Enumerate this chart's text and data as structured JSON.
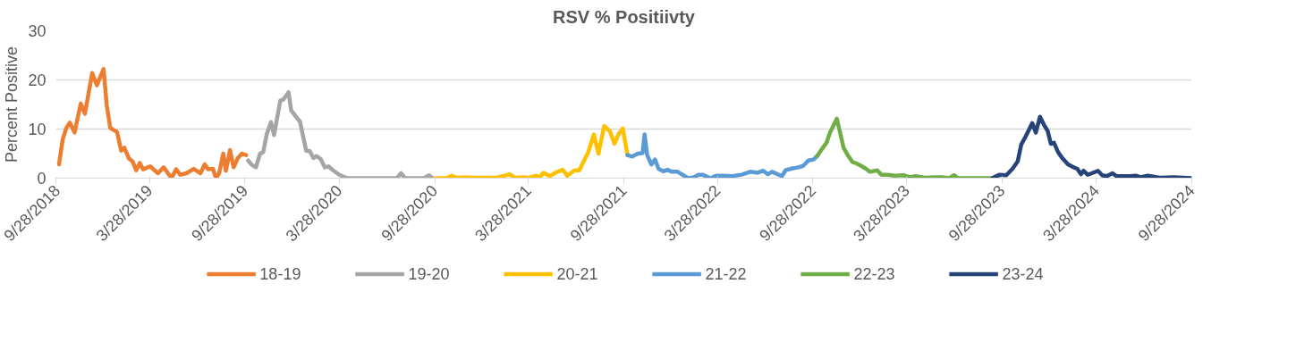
{
  "chart_data": {
    "type": "line",
    "title": "RSV % Positiivty",
    "ylabel": "Percent Positive",
    "xlim": [
      "2018-09-28",
      "2024-09-28"
    ],
    "xticks": [
      {
        "value": "2018-09-28",
        "label": "9/28/2018"
      },
      {
        "value": "2019-03-28",
        "label": "3/28/2019"
      },
      {
        "value": "2019-09-28",
        "label": "9/28/2019"
      },
      {
        "value": "2020-03-28",
        "label": "3/28/2020"
      },
      {
        "value": "2020-09-28",
        "label": "9/28/2020"
      },
      {
        "value": "2021-03-28",
        "label": "3/28/2021"
      },
      {
        "value": "2021-09-28",
        "label": "9/28/2021"
      },
      {
        "value": "2022-03-28",
        "label": "3/28/2022"
      },
      {
        "value": "2022-09-28",
        "label": "9/28/2022"
      },
      {
        "value": "2023-03-28",
        "label": "3/28/2023"
      },
      {
        "value": "2023-09-28",
        "label": "9/28/2023"
      },
      {
        "value": "2024-03-28",
        "label": "3/28/2024"
      },
      {
        "value": "2024-09-28",
        "label": "9/28/2024"
      }
    ],
    "ylim": [
      0,
      30
    ],
    "yticks": [
      0,
      10,
      20,
      30
    ],
    "grid": "y",
    "legend": "bottom",
    "line_style": "solid",
    "marker": "none",
    "series": [
      {
        "name": "18-19",
        "color": "#ed7d31",
        "x": [
          "2018-10-04",
          "2018-10-11",
          "2018-10-18",
          "2018-10-25",
          "2018-11-03",
          "2018-11-15",
          "2018-11-23",
          "2018-12-07",
          "2018-12-16",
          "2018-12-29",
          "2019-01-04",
          "2019-01-11",
          "2019-01-24",
          "2019-02-01",
          "2019-02-07",
          "2019-02-16",
          "2019-02-23",
          "2019-03-02",
          "2019-03-09",
          "2019-03-15",
          "2019-03-29",
          "2019-04-13",
          "2019-04-24",
          "2019-05-09",
          "2019-05-18",
          "2019-05-26",
          "2019-06-07",
          "2019-06-21",
          "2019-07-04",
          "2019-07-12",
          "2019-07-19",
          "2019-07-28",
          "2019-08-03",
          "2019-08-09",
          "2019-08-17",
          "2019-08-22",
          "2019-08-30",
          "2019-09-06",
          "2019-09-14",
          "2019-09-22",
          "2019-09-30"
        ],
        "values": [
          2.8,
          7.8,
          10.2,
          11.3,
          9.3,
          15.2,
          13.1,
          21.4,
          18.9,
          22.2,
          14.9,
          10.2,
          9.4,
          5.6,
          6.2,
          4.0,
          3.4,
          1.6,
          3.1,
          1.8,
          2.4,
          1.0,
          2.2,
          0,
          1.8,
          0.7,
          1.0,
          1.9,
          1.0,
          2.8,
          1.8,
          1.9,
          0,
          1.0,
          5.0,
          1.5,
          5.7,
          2.2,
          4.1,
          5.0,
          4.7
        ]
      },
      {
        "name": "19-20",
        "color": "#a5a5a5",
        "x": [
          "2019-10-04",
          "2019-10-11",
          "2019-10-19",
          "2019-10-27",
          "2019-11-02",
          "2019-11-09",
          "2019-11-17",
          "2019-11-23",
          "2019-12-05",
          "2019-12-11",
          "2019-12-21",
          "2019-12-26",
          "2020-01-03",
          "2020-01-12",
          "2020-01-24",
          "2020-01-31",
          "2020-02-07",
          "2020-02-13",
          "2020-02-21",
          "2020-02-29",
          "2020-03-07",
          "2020-03-16",
          "2020-03-29",
          "2020-04-12",
          "2020-05-25",
          "2020-07-17",
          "2020-07-25",
          "2020-08-02",
          "2020-09-07",
          "2020-09-17",
          "2020-09-24"
        ],
        "values": [
          3.6,
          2.7,
          2.2,
          5.0,
          5.3,
          9.0,
          11.4,
          8.8,
          15.8,
          16.0,
          17.5,
          13.8,
          12.7,
          11.5,
          5.6,
          5.5,
          4.1,
          4.5,
          3.9,
          2.2,
          2.4,
          1.6,
          0.6,
          0,
          0,
          0,
          1.0,
          0,
          0,
          0.6,
          0
        ]
      },
      {
        "name": "20-21",
        "color": "#ffc000",
        "x": [
          "2020-09-28",
          "2020-10-21",
          "2020-10-31",
          "2020-11-10",
          "2020-11-27",
          "2020-12-20",
          "2021-01-25",
          "2021-02-06",
          "2021-02-20",
          "2021-03-01",
          "2021-03-18",
          "2021-03-29",
          "2021-04-12",
          "2021-04-18",
          "2021-04-26",
          "2021-05-08",
          "2021-05-19",
          "2021-06-02",
          "2021-06-11",
          "2021-06-25",
          "2021-07-04",
          "2021-07-12",
          "2021-07-21",
          "2021-08-01",
          "2021-08-10",
          "2021-08-21",
          "2021-09-01",
          "2021-09-10",
          "2021-09-18",
          "2021-09-26",
          "2021-10-05"
        ],
        "values": [
          0,
          0,
          0.5,
          0.1,
          0.2,
          0.1,
          0.1,
          0.4,
          0.8,
          0.1,
          0.2,
          0.1,
          0.5,
          0.1,
          1.1,
          0.4,
          1.1,
          1.7,
          0.5,
          1.6,
          1.6,
          3.3,
          5.2,
          8.9,
          5.0,
          10.6,
          9.6,
          7.0,
          9.0,
          10.1,
          4.7
        ]
      },
      {
        "name": "21-22",
        "color": "#5b9bd5",
        "x": [
          "2021-10-05",
          "2021-10-14",
          "2021-10-25",
          "2021-11-03",
          "2021-11-07",
          "2021-11-12",
          "2021-11-20",
          "2021-11-27",
          "2021-12-04",
          "2021-12-13",
          "2021-12-21",
          "2021-12-30",
          "2022-01-10",
          "2022-01-19",
          "2022-01-30",
          "2022-02-10",
          "2022-02-19",
          "2022-02-27",
          "2022-03-14",
          "2022-03-25",
          "2022-04-08",
          "2022-04-25",
          "2022-05-13",
          "2022-05-30",
          "2022-06-13",
          "2022-06-24",
          "2022-07-03",
          "2022-07-11",
          "2022-07-30",
          "2022-08-06",
          "2022-08-20",
          "2022-08-31",
          "2022-09-09",
          "2022-09-19",
          "2022-09-29",
          "2022-10-06"
        ],
        "values": [
          4.7,
          4.4,
          5.0,
          5.1,
          8.9,
          4.7,
          2.8,
          3.8,
          1.9,
          1.4,
          1.7,
          1.3,
          1.3,
          0.7,
          0,
          0.2,
          0.7,
          0.7,
          0,
          0.5,
          0.5,
          0.4,
          0.7,
          1.3,
          1.1,
          1.5,
          0.8,
          1.3,
          0.4,
          1.6,
          2.0,
          2.2,
          2.5,
          3.6,
          3.8,
          4.5
        ]
      },
      {
        "name": "22-23",
        "color": "#70ad47",
        "x": [
          "2022-10-06",
          "2022-10-15",
          "2022-10-24",
          "2022-10-31",
          "2022-11-13",
          "2022-11-19",
          "2022-11-26",
          "2022-12-04",
          "2022-12-13",
          "2022-12-21",
          "2022-12-30",
          "2023-01-07",
          "2023-01-16",
          "2023-01-30",
          "2023-02-07",
          "2023-02-19",
          "2023-03-05",
          "2023-03-22",
          "2023-04-02",
          "2023-04-14",
          "2023-05-01",
          "2023-05-23",
          "2023-06-04",
          "2023-06-18",
          "2023-06-27",
          "2023-07-05",
          "2023-07-31",
          "2023-09-20"
        ],
        "values": [
          4.5,
          5.9,
          7.2,
          9.3,
          12.1,
          9.4,
          6.2,
          4.7,
          3.3,
          3.0,
          2.5,
          2.0,
          1.3,
          1.6,
          0.7,
          0.7,
          0.5,
          0.6,
          0.2,
          0.4,
          0.1,
          0.2,
          0.2,
          0,
          0.6,
          0,
          0,
          0
        ]
      },
      {
        "name": "23-24",
        "color": "#264478",
        "x": [
          "2023-09-09",
          "2023-09-22",
          "2023-10-06",
          "2023-10-18",
          "2023-10-28",
          "2023-11-04",
          "2023-11-12",
          "2023-11-25",
          "2023-12-02",
          "2023-12-10",
          "2023-12-18",
          "2023-12-25",
          "2023-12-31",
          "2024-01-06",
          "2024-01-14",
          "2024-01-22",
          "2024-02-02",
          "2024-02-11",
          "2024-02-20",
          "2024-02-27",
          "2024-03-03",
          "2024-03-11",
          "2024-03-19",
          "2024-03-31",
          "2024-04-08",
          "2024-04-17",
          "2024-04-28",
          "2024-05-06",
          "2024-06-01",
          "2024-06-12",
          "2024-06-21",
          "2024-07-05",
          "2024-07-28",
          "2024-08-25",
          "2024-09-28"
        ],
        "values": [
          0,
          0.7,
          0.6,
          1.9,
          3.4,
          6.9,
          8.4,
          11.2,
          9.3,
          12.5,
          10.8,
          9.6,
          7.0,
          7.2,
          5.3,
          4.1,
          2.8,
          2.3,
          1.9,
          0.8,
          1.5,
          0.7,
          1.0,
          1.5,
          0.6,
          0.4,
          1.0,
          0.4,
          0.4,
          0.5,
          0.2,
          0.5,
          0.1,
          0.2,
          0
        ]
      }
    ]
  }
}
